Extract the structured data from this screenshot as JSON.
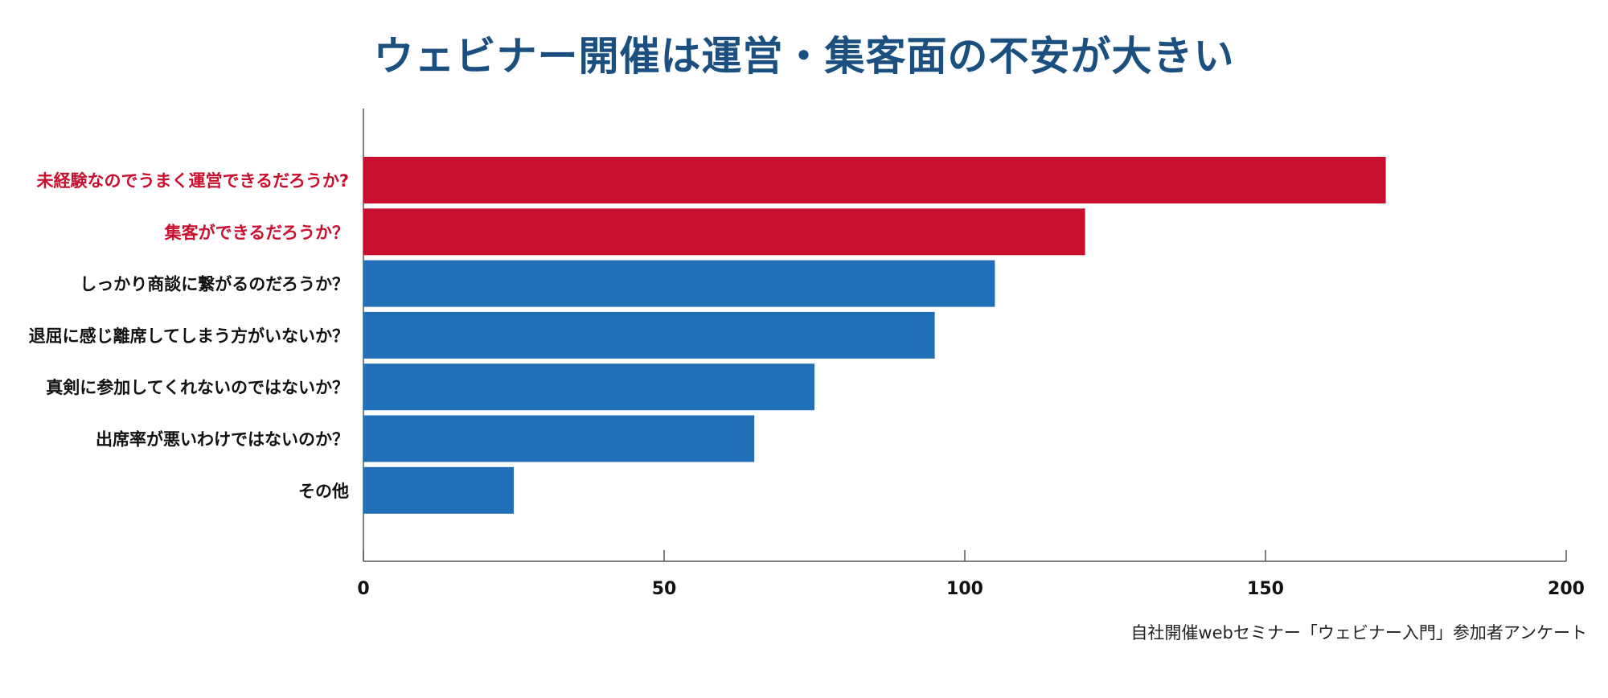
{
  "chart_data": {
    "type": "bar",
    "orientation": "horizontal",
    "title": "ウェビナー開催は運営・集客面の不安が大きい",
    "categories": [
      "未経験なのでうまく運営できるだろうか?",
      "集客ができるだろうか？",
      "しっかり商談に繋がるのだろうか？",
      "退屈に感じ離席してしまう方がいないか？",
      "真剣に参加してくれないのではないか？",
      "出席率が悪いわけではないのか？",
      "その他"
    ],
    "values": [
      170,
      120,
      105,
      95,
      75,
      65,
      25
    ],
    "highlighted": [
      true,
      true,
      false,
      false,
      false,
      false,
      false
    ],
    "xlim": [
      0,
      200
    ],
    "xticks": [
      0,
      50,
      100,
      150,
      200
    ],
    "xlabel": "",
    "ylabel": "",
    "grid": false,
    "colors": {
      "highlight": "#c8102e",
      "default": "#216fb6",
      "title": "#1a4f80",
      "axis": "#555555"
    },
    "source": "自社開催webセミナー「ウェビナー入門」参加者アンケート"
  }
}
